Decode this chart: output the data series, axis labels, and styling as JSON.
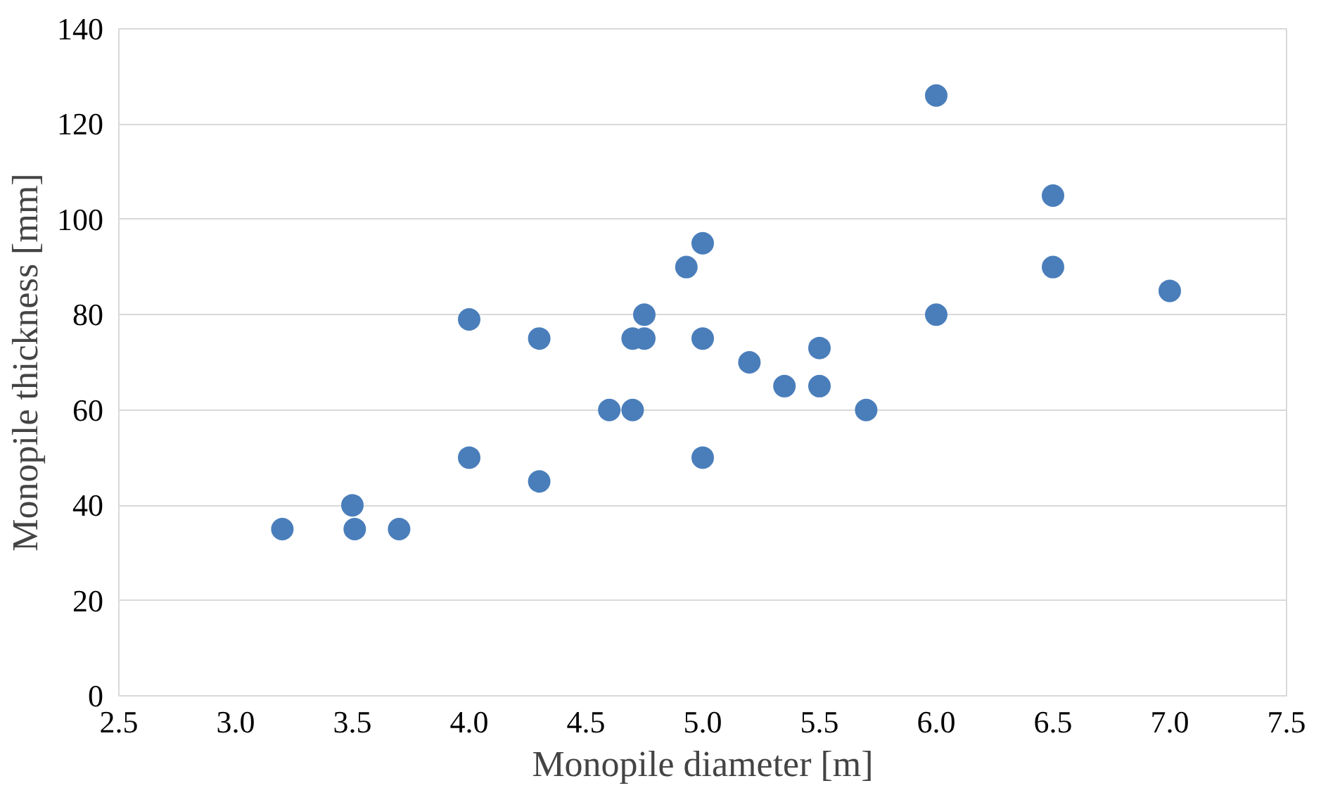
{
  "chart_data": {
    "type": "scatter",
    "xlabel": "Monopile diameter [m]",
    "ylabel": "Monopile thickness [mm]",
    "x": [
      3.2,
      3.5,
      3.51,
      3.7,
      4.0,
      4.0,
      4.3,
      4.3,
      4.6,
      4.7,
      4.7,
      4.75,
      4.75,
      4.93,
      5.0,
      5.0,
      5.0,
      5.2,
      5.35,
      5.5,
      5.5,
      5.7,
      6.0,
      6.0,
      6.5,
      6.5,
      7.0
    ],
    "series": [
      {
        "color": "#4a7ebb",
        "values": [
          35,
          40,
          35,
          35,
          79,
          50,
          75,
          45,
          60,
          60,
          75,
          75,
          80,
          90,
          95,
          75,
          50,
          70,
          65,
          73,
          65,
          60,
          126,
          80,
          105,
          90,
          85
        ]
      }
    ],
    "xlim": [
      2.5,
      7.5
    ],
    "xticks": [
      {
        "value": 2.5,
        "label": "2.5"
      },
      {
        "value": 3,
        "label": "3.0"
      },
      {
        "value": 3.5,
        "label": "3.5"
      },
      {
        "value": 4,
        "label": "4.0"
      },
      {
        "value": 4.5,
        "label": "4.5"
      },
      {
        "value": 5,
        "label": "5.0"
      },
      {
        "value": 5.5,
        "label": "5.5"
      },
      {
        "value": 6,
        "label": "6.0"
      },
      {
        "value": 6.5,
        "label": "6.5"
      },
      {
        "value": 7,
        "label": "7.0"
      },
      {
        "value": 7.5,
        "label": "7.5"
      }
    ],
    "ylim": [
      0,
      140
    ],
    "yticks": [
      0,
      20,
      40,
      60,
      80,
      100,
      120,
      140
    ],
    "grid": "y",
    "marker": "circle"
  }
}
